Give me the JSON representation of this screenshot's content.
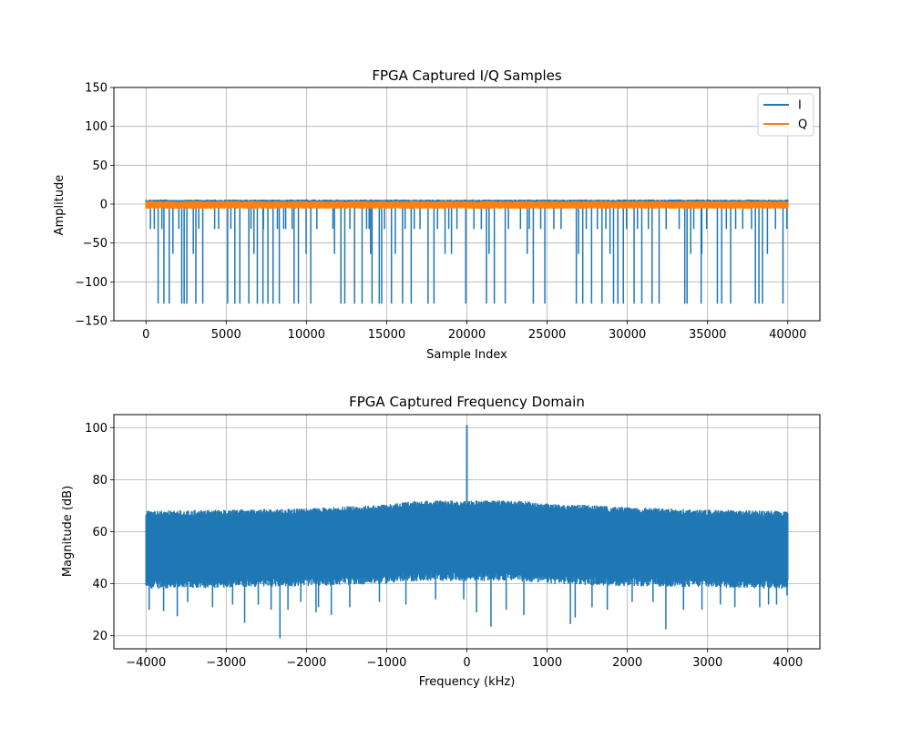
{
  "chart_data": [
    {
      "type": "line",
      "title": "FPGA Captured I/Q Samples",
      "xlabel": "Sample Index",
      "ylabel": "Amplitude",
      "xlim": [
        -2000,
        42000
      ],
      "ylim": [
        -150,
        150
      ],
      "xticks": [
        0,
        5000,
        10000,
        15000,
        20000,
        25000,
        30000,
        35000,
        40000
      ],
      "yticks": [
        -150,
        -100,
        -50,
        0,
        50,
        100,
        150
      ],
      "xtick_labels": [
        "0",
        "5000",
        "10000",
        "15000",
        "20000",
        "25000",
        "30000",
        "35000",
        "40000"
      ],
      "ytick_labels": [
        "−150",
        "−100",
        "−50",
        "0",
        "50",
        "100",
        "150"
      ],
      "grid": true,
      "legend_position": "top-right",
      "sample_count": 40000,
      "series": [
        {
          "name": "I",
          "color": "#1f77b4",
          "baseline_range": [
            -5,
            6
          ],
          "spikes_minus_128": [
            760,
            1120,
            1450,
            2230,
            2380,
            2550,
            3110,
            3540,
            5090,
            5540,
            5850,
            6410,
            6940,
            7290,
            7600,
            7920,
            8310,
            9230,
            9500,
            10270,
            12150,
            12390,
            13000,
            13470,
            14090,
            14540,
            14690,
            15300,
            15990,
            16530,
            17580,
            17950,
            19930,
            21220,
            21710,
            22390,
            24140,
            24860,
            26820,
            27220,
            27770,
            28420,
            29140,
            29410,
            29750,
            30420,
            30900,
            31540,
            31980,
            33580,
            33720,
            34600,
            35610,
            35880,
            36440,
            37980,
            38200,
            38420,
            39700
          ],
          "spikes_minus_64": [
            1680,
            2950,
            6730,
            9980,
            11750,
            14000,
            15540,
            18640,
            19040,
            21380,
            23760,
            26960,
            28920,
            33950,
            34640,
            38730
          ],
          "spikes_minus_32": [
            280,
            520,
            990,
            2050,
            3290,
            4280,
            4530,
            5290,
            6550,
            7320,
            8190,
            8580,
            8710,
            9110,
            10650,
            11650,
            12710,
            13750,
            13910,
            14870,
            16150,
            16720,
            17080,
            18170,
            18870,
            19380,
            20440,
            20900,
            22590,
            23340,
            23890,
            24600,
            25420,
            25870,
            27440,
            28130,
            28660,
            29950,
            30630,
            31310,
            32420,
            33230,
            34140,
            34940,
            36170,
            36750,
            37190,
            37740,
            39230,
            39940
          ]
        },
        {
          "name": "Q",
          "color": "#ff7f0e",
          "baseline_range": [
            -6,
            4
          ]
        }
      ]
    },
    {
      "type": "line",
      "title": "FPGA Captured Frequency Domain",
      "xlabel": "Frequency (kHz)",
      "ylabel": "Magnitude (dB)",
      "xlim": [
        -4400,
        4400
      ],
      "ylim": [
        15,
        105
      ],
      "xticks": [
        -4000,
        -3000,
        -2000,
        -1000,
        0,
        1000,
        2000,
        3000,
        4000
      ],
      "yticks": [
        20,
        40,
        60,
        80,
        100
      ],
      "xtick_labels": [
        "−4000",
        "−3000",
        "−2000",
        "−1000",
        "0",
        "1000",
        "2000",
        "3000",
        "4000"
      ],
      "ytick_labels": [
        "20",
        "40",
        "60",
        "80",
        "100"
      ],
      "grid": true,
      "series": [
        {
          "color": "#1f77b4",
          "x_range": [
            -4000,
            4000
          ],
          "upper_envelope": {
            "x": [
              -4000,
              -3000,
              -2000,
              -1000,
              -600,
              0,
              600,
              1000,
              2000,
              3000,
              4000
            ],
            "y": [
              68,
              68.5,
              69,
              70.5,
              72,
              72,
              72,
              71,
              69.5,
              68.5,
              68
            ]
          },
          "lower_envelope": {
            "x": [
              -4000,
              -3000,
              -2000,
              -1000,
              -600,
              0,
              600,
              1000,
              2000,
              3000,
              4000
            ],
            "y": [
              38,
              38.5,
              39,
              40,
              41,
              41,
              41,
              40,
              39,
              38.5,
              38
            ]
          },
          "dips": [
            {
              "x": -3960,
              "y": 30
            },
            {
              "x": -3780,
              "y": 29.5
            },
            {
              "x": -3610,
              "y": 27.5
            },
            {
              "x": -3480,
              "y": 33
            },
            {
              "x": -3170,
              "y": 31
            },
            {
              "x": -2920,
              "y": 32
            },
            {
              "x": -2770,
              "y": 25
            },
            {
              "x": -2600,
              "y": 32
            },
            {
              "x": -2440,
              "y": 30
            },
            {
              "x": -2330,
              "y": 19
            },
            {
              "x": -2230,
              "y": 30
            },
            {
              "x": -2070,
              "y": 33
            },
            {
              "x": -1880,
              "y": 29
            },
            {
              "x": -1850,
              "y": 31
            },
            {
              "x": -1690,
              "y": 28
            },
            {
              "x": -1460,
              "y": 31
            },
            {
              "x": -1090,
              "y": 33
            },
            {
              "x": -760,
              "y": 32
            },
            {
              "x": -390,
              "y": 34
            },
            {
              "x": -40,
              "y": 34
            },
            {
              "x": 120,
              "y": 29
            },
            {
              "x": 300,
              "y": 23.5
            },
            {
              "x": 490,
              "y": 30
            },
            {
              "x": 710,
              "y": 28
            },
            {
              "x": 1290,
              "y": 24.5
            },
            {
              "x": 1350,
              "y": 27
            },
            {
              "x": 1560,
              "y": 31
            },
            {
              "x": 1750,
              "y": 30
            },
            {
              "x": 2060,
              "y": 33
            },
            {
              "x": 2320,
              "y": 33
            },
            {
              "x": 2480,
              "y": 22.5
            },
            {
              "x": 2700,
              "y": 30
            },
            {
              "x": 2930,
              "y": 30
            },
            {
              "x": 3160,
              "y": 32
            },
            {
              "x": 3340,
              "y": 31
            },
            {
              "x": 3650,
              "y": 31
            },
            {
              "x": 3760,
              "y": 32
            },
            {
              "x": 3860,
              "y": 32
            },
            {
              "x": 3990,
              "y": 35.5
            }
          ],
          "peaks": [
            {
              "x": 0,
              "y": 101
            }
          ]
        }
      ]
    }
  ]
}
